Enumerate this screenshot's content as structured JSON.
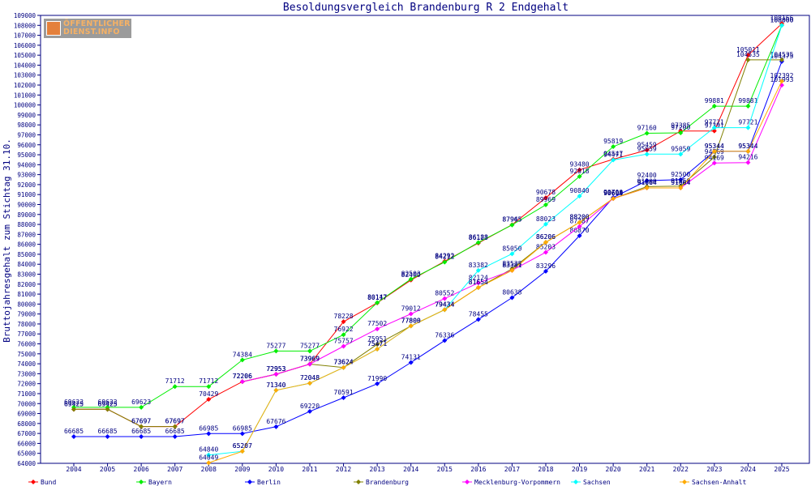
{
  "chart_data": {
    "type": "line",
    "title": "Besoldungsvergleich Brandenburg R 2 Endgehalt",
    "ylabel": "Bruttojahresgehalt zum Stichtag 31.10.",
    "xlabel": "",
    "ylim": [
      64000,
      109000
    ],
    "ystep": 1000,
    "grid": false,
    "legend_position": "bottom",
    "logo_text": [
      "ÖFFENTLICHER",
      "DIENST.INFO"
    ],
    "x": [
      "2004",
      "2005",
      "2006",
      "2007",
      "2008",
      "2009",
      "2010",
      "2011",
      "2012",
      "2013",
      "2014",
      "2015",
      "2016",
      "2017",
      "2018",
      "2019",
      "2020",
      "2021",
      "2022",
      "2023",
      "2024",
      "2025"
    ],
    "series": [
      {
        "name": "Bund",
        "color": "#ff0000",
        "values": [
          69425,
          69425,
          67697,
          67697,
          70429,
          72206,
          72953,
          73969,
          78228,
          80117,
          82409,
          84292,
          86123,
          87965,
          90678,
          93480,
          94547,
          95459,
          97385,
          97391,
          105011,
          108166
        ]
      },
      {
        "name": "Bayern",
        "color": "#00ee00",
        "values": [
          69623,
          69623,
          69623,
          71712,
          71712,
          74384,
          75277,
          75277,
          76922,
          80147,
          82503,
          84212,
          86188,
          87945,
          89969,
          92818,
          95819,
          97160,
          97200,
          99881,
          99881,
          108000
        ]
      },
      {
        "name": "Berlin",
        "color": "#0000ff",
        "values": [
          66685,
          66685,
          66685,
          66685,
          66985,
          66985,
          67676,
          69220,
          70591,
          71990,
          74131,
          76336,
          78455,
          80638,
          83296,
          86870,
          90700,
          92400,
          92500,
          95344,
          95344,
          104375
        ]
      },
      {
        "name": "Brandenburg",
        "color": "#808000",
        "values": [
          69425,
          69425,
          67697,
          67697,
          null,
          72206,
          72953,
          73969,
          73624,
          75951,
          77800,
          79434,
          81654,
          83538,
          86206,
          88200,
          90600,
          91800,
          91850,
          94769,
          104535,
          104535
        ]
      },
      {
        "name": "Mecklenburg-Vorpommern",
        "color": "#ff00ff",
        "values": [
          null,
          null,
          null,
          null,
          null,
          72206,
          72953,
          73969,
          75757,
          77502,
          79012,
          80552,
          82124,
          83381,
          85203,
          87787,
          90604,
          91664,
          91664,
          94169,
          94216,
          101993
        ]
      },
      {
        "name": "Sachsen",
        "color": "#00ffff",
        "values": [
          null,
          null,
          null,
          null,
          64840,
          65207,
          71340,
          72048,
          73624,
          75471,
          77800,
          79434,
          83382,
          85050,
          88023,
          90840,
          94471,
          95059,
          95059,
          97721,
          97721,
          108000
        ]
      },
      {
        "name": "Sachsen-Anhalt",
        "color": "#ffaa00",
        "values": [
          null,
          null,
          null,
          null,
          64049,
          65207,
          71340,
          72048,
          73624,
          75471,
          77800,
          79434,
          81654,
          83381,
          86206,
          88200,
          90604,
          91664,
          91664,
          95344,
          95344,
          102392
        ]
      }
    ]
  }
}
